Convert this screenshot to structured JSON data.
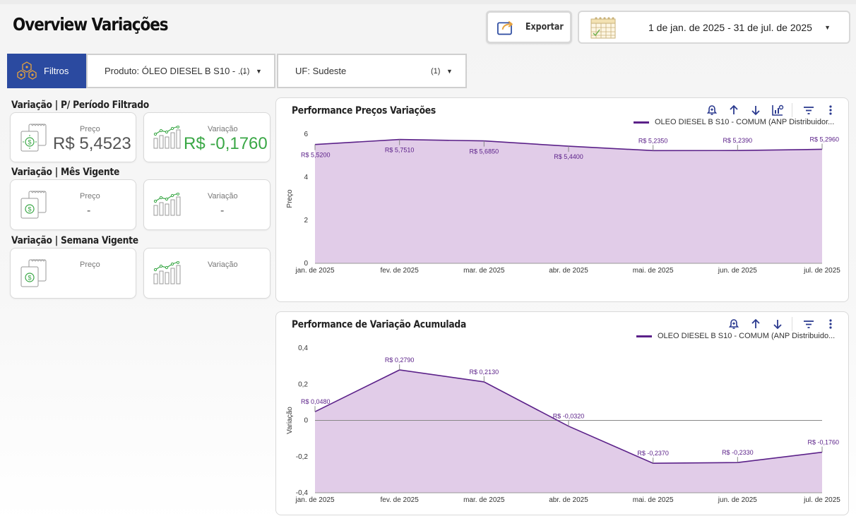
{
  "header": {
    "title": "Overview Variações",
    "export_label": "Exportar",
    "date_range": "1 de jan. de 2025 - 31 de jul. de 2025"
  },
  "filters": {
    "button_label": "Filtros",
    "produto": {
      "name": "Produto",
      "value": ": ÓLEO DIESEL B S10 - ...",
      "count": "(1)"
    },
    "uf": {
      "name": "UF",
      "value": ": Sudeste",
      "count": "(1)"
    }
  },
  "sections": [
    {
      "title": "Variação | P/ Período Filtrado",
      "price_label": "Preço",
      "price_value": "R$ 5,4523",
      "var_label": "Variação",
      "var_value": "R$ -0,1760"
    },
    {
      "title": "Variação | Mês Vigente",
      "price_label": "Preço",
      "price_value": "-",
      "var_label": "Variação",
      "var_value": "-"
    },
    {
      "title": "Variação | Semana Vigente",
      "price_label": "Preço",
      "price_value": "",
      "var_label": "Variação",
      "var_value": ""
    }
  ],
  "colors": {
    "brand_blue": "#2b4aa0",
    "series_line": "#5b2189",
    "area_fill": "#e1cce8",
    "positive_green": "#3aa746"
  },
  "chart_data": [
    {
      "type": "area",
      "title": "Performance Preços Variações",
      "ylabel": "Preço",
      "xlabel": "",
      "categories": [
        "jan. de 2025",
        "fev. de 2025",
        "mar. de 2025",
        "abr. de 2025",
        "mai. de 2025",
        "jun. de 2025",
        "jul. de 2025"
      ],
      "series": [
        {
          "name": "OLEO DIESEL B S10 - COMUM (ANP Distribuidor...",
          "values": [
            5.52,
            5.751,
            5.685,
            5.44,
            5.235,
            5.239,
            5.296
          ],
          "labels": [
            "R$ 5,5200",
            "R$ 5,7510",
            "R$ 5,6850",
            "R$ 5,4400",
            "R$ 5,2350",
            "R$ 5,2390",
            "R$ 5,2960"
          ]
        }
      ],
      "ylim": [
        0,
        6
      ],
      "yticks": [
        0,
        2,
        4,
        6
      ],
      "ytick_labels": [
        "0",
        "2",
        "4",
        "6"
      ],
      "legend": "top-right",
      "grid": false
    },
    {
      "type": "area",
      "title": "Performance de Variação Acumulada",
      "ylabel": "Variação",
      "xlabel": "",
      "categories": [
        "jan. de 2025",
        "fev. de 2025",
        "mar. de 2025",
        "abr. de 2025",
        "mai. de 2025",
        "jun. de 2025",
        "jul. de 2025"
      ],
      "series": [
        {
          "name": "OLEO DIESEL B S10 - COMUM (ANP Distribuido...",
          "values": [
            0.048,
            0.279,
            0.213,
            -0.032,
            -0.237,
            -0.233,
            -0.176
          ],
          "labels": [
            "R$ 0,0480",
            "R$ 0,2790",
            "R$ 0,2130",
            "R$ -0,0320",
            "R$ -0,2370",
            "R$ -0,2330",
            "R$ -0,1760"
          ]
        }
      ],
      "ylim": [
        -0.4,
        0.4
      ],
      "yticks": [
        -0.4,
        -0.2,
        0,
        0.2,
        0.4
      ],
      "ytick_labels": [
        "-0,4",
        "-0,2",
        "0",
        "0,2",
        "0,4"
      ],
      "legend": "top-right",
      "grid": false,
      "zero_line": true
    }
  ]
}
